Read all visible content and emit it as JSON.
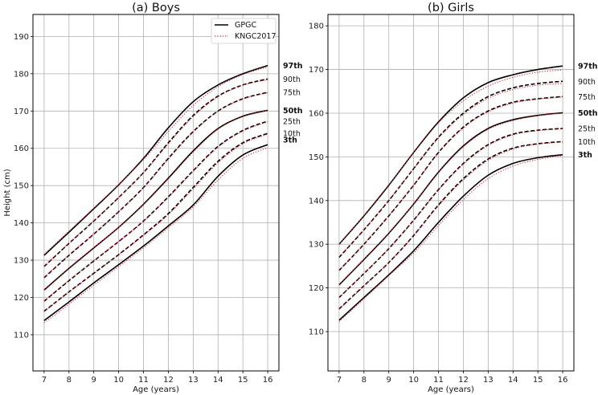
{
  "chart_data": [
    {
      "type": "line",
      "title": "(a) Boys",
      "xlabel": "Age (years)",
      "ylabel": "Height (cm)",
      "xlim": [
        6.55,
        16.45
      ],
      "ylim": [
        100.3,
        195.9
      ],
      "xticks": [
        7,
        8,
        9,
        10,
        11,
        12,
        13,
        14,
        15,
        16
      ],
      "yticks": [
        110,
        120,
        130,
        140,
        150,
        160,
        170,
        180,
        190
      ],
      "grid": true,
      "legend": {
        "placement": "top-right",
        "entries": [
          "GPGC",
          "KNGC2017"
        ]
      },
      "x": [
        7,
        8,
        9,
        10,
        11,
        12,
        13,
        14,
        15,
        16
      ],
      "percentile_labels": [
        "97th",
        "90th",
        "75th",
        "50th",
        "25th",
        "10th",
        "3th"
      ],
      "bold_labels": [
        "97th",
        "50th",
        "3th"
      ],
      "series": [
        {
          "name": "GPGC",
          "color": "#000000",
          "style": "solid/dashed",
          "curves": {
            "97th": [
              131.3,
              137.5,
              143.8,
              150.2,
              157.3,
              165.5,
              172.5,
              177.0,
              180.0,
              182.2
            ],
            "90th": [
              128.3,
              134.5,
              140.5,
              146.8,
              153.5,
              161.5,
              168.8,
              174.0,
              177.0,
              178.6
            ],
            "75th": [
              125.3,
              131.3,
              137.0,
              143.0,
              149.5,
              157.3,
              164.5,
              170.0,
              173.3,
              175.0
            ],
            "50th": [
              122.0,
              127.8,
              133.3,
              138.8,
              145.0,
              152.0,
              159.3,
              165.3,
              168.6,
              170.2
            ],
            "25th": [
              119.0,
              124.5,
              129.8,
              135.0,
              140.5,
              147.0,
              154.0,
              160.5,
              164.8,
              167.3
            ],
            "10th": [
              116.3,
              121.5,
              126.5,
              131.5,
              136.8,
              142.5,
              149.5,
              156.5,
              161.5,
              164.0
            ],
            "3th": [
              113.8,
              118.8,
              123.9,
              128.8,
              133.8,
              139.2,
              144.8,
              152.5,
              158.2,
              161.0
            ]
          }
        },
        {
          "name": "KNGC2017",
          "color": "#e8212b",
          "style": "dotted",
          "curves": {
            "97th": [
              131.6,
              137.8,
              144.0,
              150.3,
              157.0,
              164.5,
              171.5,
              176.5,
              179.8,
              181.8
            ],
            "90th": [
              128.4,
              134.6,
              140.6,
              146.8,
              153.4,
              161.2,
              168.5,
              173.8,
              176.9,
              178.4
            ],
            "75th": [
              125.4,
              131.4,
              137.1,
              143.0,
              149.4,
              157.1,
              164.3,
              169.9,
              173.2,
              174.9
            ],
            "50th": [
              122.1,
              127.9,
              133.4,
              138.8,
              144.9,
              151.8,
              159.0,
              165.1,
              168.5,
              170.1
            ],
            "25th": [
              119.1,
              124.6,
              129.9,
              135.0,
              140.4,
              146.8,
              153.8,
              160.3,
              164.6,
              167.1
            ],
            "10th": [
              116.2,
              121.4,
              126.4,
              131.4,
              136.6,
              142.2,
              149.1,
              156.1,
              161.2,
              163.8
            ],
            "3th": [
              113.2,
              118.2,
              123.3,
              128.3,
              133.3,
              138.7,
              144.3,
              151.5,
              157.3,
              160.2
            ]
          }
        }
      ]
    },
    {
      "type": "line",
      "title": "(b) Girls",
      "xlabel": "Age (years)",
      "xlim": [
        6.55,
        16.45
      ],
      "ylim": [
        101.0,
        182.6
      ],
      "xticks": [
        7,
        8,
        9,
        10,
        11,
        12,
        13,
        14,
        15,
        16
      ],
      "yticks": [
        110,
        120,
        130,
        140,
        150,
        160,
        170,
        180
      ],
      "grid": true,
      "x": [
        7,
        8,
        9,
        10,
        11,
        12,
        13,
        14,
        15,
        16
      ],
      "percentile_labels": [
        "97th",
        "90th",
        "75th",
        "50th",
        "25th",
        "10th",
        "3th"
      ],
      "bold_labels": [
        "97th",
        "50th",
        "3th"
      ],
      "series": [
        {
          "name": "GPGC",
          "color": "#000000",
          "style": "solid/dashed",
          "curves": {
            "97th": [
              130.0,
              136.5,
              143.5,
              151.0,
              158.0,
              163.5,
              167.0,
              168.8,
              170.0,
              170.8
            ],
            "90th": [
              127.0,
              133.3,
              140.0,
              147.3,
              154.5,
              160.0,
              163.8,
              165.8,
              166.8,
              167.3
            ],
            "75th": [
              124.0,
              130.0,
              136.5,
              143.5,
              151.0,
              156.8,
              160.5,
              162.5,
              163.3,
              163.8
            ],
            "50th": [
              120.7,
              126.5,
              132.5,
              139.2,
              146.5,
              152.5,
              156.5,
              158.5,
              159.5,
              160.1
            ],
            "25th": [
              117.8,
              123.3,
              129.0,
              135.5,
              142.5,
              148.5,
              152.8,
              155.2,
              156.1,
              156.5
            ],
            "10th": [
              115.2,
              120.5,
              125.8,
              132.0,
              139.0,
              145.0,
              149.5,
              152.0,
              153.0,
              153.5
            ],
            "3th": [
              112.6,
              117.8,
              123.0,
              128.5,
              135.0,
              141.0,
              145.8,
              148.5,
              149.8,
              150.5
            ]
          }
        },
        {
          "name": "KNGC2017",
          "color": "#e8212b",
          "style": "dotted",
          "curves": {
            "97th": [
              130.0,
              136.6,
              143.6,
              151.0,
              157.8,
              162.8,
              166.2,
              168.2,
              169.4,
              169.9
            ],
            "90th": [
              127.1,
              133.4,
              140.1,
              147.3,
              154.3,
              159.7,
              163.4,
              165.4,
              166.4,
              166.8
            ],
            "75th": [
              124.0,
              130.1,
              136.6,
              143.5,
              150.9,
              156.6,
              160.3,
              162.3,
              163.2,
              163.7
            ],
            "50th": [
              120.8,
              126.6,
              132.6,
              139.2,
              146.4,
              152.3,
              156.3,
              158.3,
              159.4,
              160.0
            ],
            "25th": [
              117.8,
              123.3,
              129.0,
              135.4,
              142.4,
              148.3,
              152.6,
              155.0,
              156.0,
              156.4
            ],
            "10th": [
              115.1,
              120.4,
              125.8,
              131.9,
              138.8,
              144.7,
              149.2,
              151.8,
              152.9,
              153.4
            ],
            "3th": [
              112.3,
              117.5,
              122.8,
              128.0,
              134.3,
              140.2,
              145.0,
              147.9,
              149.4,
              150.3
            ]
          }
        }
      ]
    }
  ]
}
